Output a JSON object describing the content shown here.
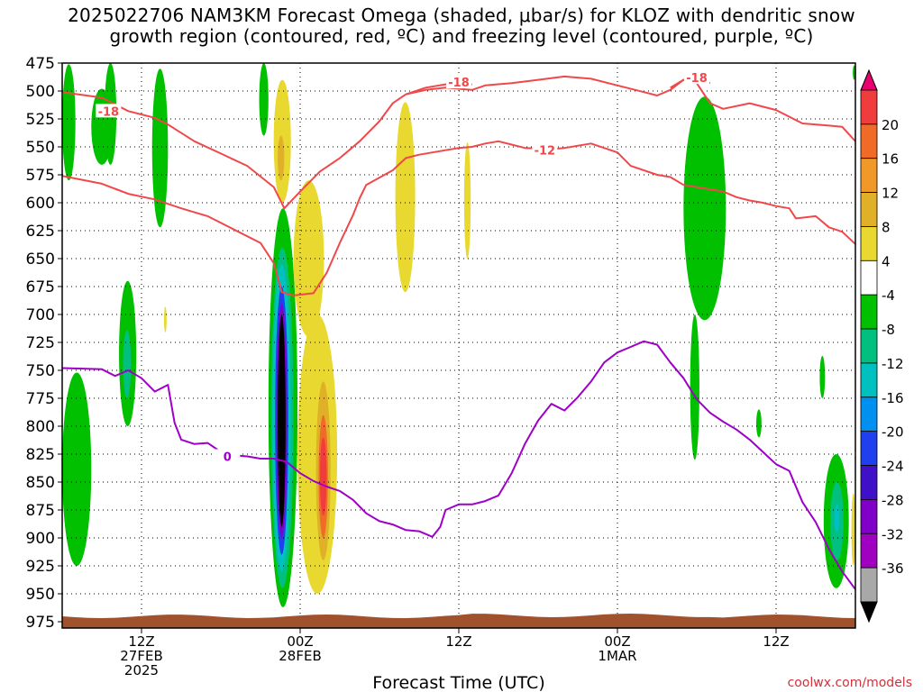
{
  "title_line1": "2025022706 NAM3KM Forecast Omega (shaded, μbar/s) for KLOZ with dendritic snow",
  "title_line2": "growth region (contoured, red, ºC) and freezing level (contoured, purple, ºC)",
  "credit": "coolwx.com/models",
  "colors": {
    "dgz_contour": "#f0484a",
    "freezing_contour": "#9e00c8",
    "terrain": "#a0522d",
    "grid": "#000000"
  },
  "chart_data": {
    "type": "heatmap",
    "title": "2025022706 NAM3KM Forecast Omega (shaded, μbar/s) for KLOZ with dendritic snow growth region (contoured, red, ºC) and freezing level (contoured, purple, ºC)",
    "xlabel": "Forecast Time (UTC)",
    "ylabel": "",
    "x_range_hours": [
      0,
      60
    ],
    "x_ticks": [
      {
        "h": 6,
        "l1": "12Z",
        "l2": "27FEB",
        "l3": "2025"
      },
      {
        "h": 18,
        "l1": "00Z",
        "l2": "28FEB",
        "l3": ""
      },
      {
        "h": 30,
        "l1": "12Z",
        "l2": "",
        "l3": ""
      },
      {
        "h": 42,
        "l1": "00Z",
        "l2": "1MAR",
        "l3": ""
      },
      {
        "h": 54,
        "l1": "12Z",
        "l2": "",
        "l3": ""
      }
    ],
    "y_range_hPa": [
      975,
      475
    ],
    "y_ticks": [
      475,
      500,
      525,
      550,
      575,
      600,
      625,
      650,
      675,
      700,
      725,
      750,
      775,
      800,
      825,
      850,
      875,
      900,
      925,
      950,
      975
    ],
    "grid": true,
    "colorbar": {
      "ticks": [
        20,
        16,
        12,
        8,
        4,
        -4,
        -8,
        -12,
        -16,
        -20,
        -24,
        -28,
        -32,
        -36
      ],
      "colors": [
        "#e8006e",
        "#f03c3c",
        "#f06a28",
        "#f09828",
        "#e0b028",
        "#e8d830",
        "#ffffff",
        "#00c000",
        "#00c080",
        "#00c0c0",
        "#0090f0",
        "#2040f0",
        "#4010c8",
        "#8000c8",
        "#a000c0",
        "#a8a8a8",
        "#000000"
      ]
    },
    "contours": [
      {
        "group": "dgz",
        "label": "-18",
        "label_at": [
          3.5,
          518
        ],
        "points": [
          [
            0,
            501
          ],
          [
            3,
            506
          ],
          [
            5,
            518
          ],
          [
            7,
            524
          ],
          [
            8,
            530
          ],
          [
            10,
            545
          ],
          [
            12,
            556
          ],
          [
            14,
            567
          ],
          [
            16,
            586
          ],
          [
            16.8,
            605
          ],
          [
            18,
            590
          ],
          [
            19.5,
            572
          ],
          [
            21,
            560
          ],
          [
            22.5,
            545
          ],
          [
            24,
            527
          ],
          [
            25,
            511
          ],
          [
            26,
            503
          ],
          [
            27.5,
            499
          ],
          [
            29,
            497
          ],
          [
            31,
            499
          ],
          [
            32,
            495
          ],
          [
            34,
            493
          ],
          [
            36,
            490
          ],
          [
            38,
            487
          ],
          [
            40,
            489
          ],
          [
            42,
            495
          ],
          [
            44,
            501
          ],
          [
            45,
            504
          ],
          [
            46,
            499
          ],
          [
            47,
            490
          ],
          [
            48,
            493
          ],
          [
            49,
            511
          ],
          [
            50,
            516
          ],
          [
            52,
            511
          ],
          [
            54,
            517
          ],
          [
            56,
            529
          ],
          [
            58,
            531
          ],
          [
            59,
            532
          ],
          [
            60,
            545
          ]
        ]
      },
      {
        "group": "dgz",
        "label": "-18",
        "label_at": [
          30,
          492
        ],
        "points": [
          [
            26,
            503
          ],
          [
            27.5,
            497
          ],
          [
            29,
            494
          ],
          [
            31,
            494
          ]
        ]
      },
      {
        "group": "dgz",
        "label": "-18",
        "label_at": [
          48,
          488
        ],
        "points": [
          [
            46,
            497
          ],
          [
            47,
            490
          ],
          [
            48,
            488
          ],
          [
            49,
            493
          ]
        ]
      },
      {
        "group": "dgz",
        "label": "-12",
        "label_at": [
          36.5,
          553
        ],
        "points": [
          [
            0,
            576
          ],
          [
            3,
            583
          ],
          [
            5,
            592
          ],
          [
            7,
            597
          ],
          [
            9,
            605
          ],
          [
            11,
            612
          ],
          [
            13,
            624
          ],
          [
            15,
            636
          ],
          [
            16,
            654
          ],
          [
            16.6,
            680
          ],
          [
            17.5,
            683
          ],
          [
            19,
            681
          ],
          [
            20,
            663
          ],
          [
            21,
            636
          ],
          [
            22,
            611
          ],
          [
            22.5,
            596
          ],
          [
            23,
            584
          ],
          [
            25,
            571
          ],
          [
            26,
            560
          ],
          [
            27,
            557
          ],
          [
            29,
            553
          ],
          [
            30,
            551
          ],
          [
            31,
            550
          ],
          [
            32,
            547
          ],
          [
            33,
            545
          ],
          [
            34,
            548
          ],
          [
            35,
            551
          ],
          [
            37,
            552
          ],
          [
            38,
            551
          ],
          [
            40,
            547
          ],
          [
            42,
            555
          ],
          [
            43,
            567
          ],
          [
            45,
            575
          ],
          [
            46,
            577
          ],
          [
            47,
            584
          ],
          [
            48,
            586
          ],
          [
            50,
            590
          ],
          [
            51,
            595
          ],
          [
            52,
            598
          ],
          [
            53,
            600
          ],
          [
            54,
            603
          ],
          [
            55,
            605
          ],
          [
            55.5,
            614
          ],
          [
            57,
            612
          ],
          [
            58,
            622
          ],
          [
            59,
            626
          ],
          [
            60,
            637
          ]
        ]
      },
      {
        "group": "freezing",
        "label": "0",
        "label_at": [
          12.5,
          827
        ],
        "points": [
          [
            0,
            748
          ],
          [
            3,
            749
          ],
          [
            4,
            755
          ],
          [
            5,
            750
          ],
          [
            6,
            757
          ],
          [
            7,
            769
          ],
          [
            8,
            763
          ],
          [
            8.5,
            797
          ],
          [
            9,
            812
          ],
          [
            10,
            816
          ],
          [
            11,
            815
          ],
          [
            12,
            823
          ],
          [
            13,
            826
          ],
          [
            14,
            827
          ],
          [
            15,
            829
          ],
          [
            16,
            829
          ],
          [
            17,
            832
          ],
          [
            18,
            842
          ],
          [
            19,
            849
          ],
          [
            20,
            854
          ],
          [
            21,
            858
          ],
          [
            22,
            866
          ],
          [
            23,
            878
          ],
          [
            24,
            885
          ],
          [
            25,
            888
          ],
          [
            26,
            893
          ],
          [
            27,
            894
          ],
          [
            28,
            899
          ],
          [
            28.6,
            890
          ],
          [
            29,
            875
          ],
          [
            30,
            870
          ],
          [
            31,
            870
          ],
          [
            32,
            867
          ],
          [
            33,
            862
          ],
          [
            34,
            842
          ],
          [
            35,
            816
          ],
          [
            36,
            795
          ],
          [
            37,
            780
          ],
          [
            38,
            786
          ],
          [
            39,
            774
          ],
          [
            40,
            760
          ],
          [
            41,
            743
          ],
          [
            42,
            734
          ],
          [
            43,
            729
          ],
          [
            44,
            724
          ],
          [
            45,
            727
          ],
          [
            46,
            743
          ],
          [
            47,
            757
          ],
          [
            48,
            776
          ],
          [
            49,
            788
          ],
          [
            50,
            796
          ],
          [
            51,
            803
          ],
          [
            52,
            812
          ],
          [
            53,
            823
          ],
          [
            54,
            834
          ],
          [
            55,
            840
          ],
          [
            56,
            868
          ],
          [
            57,
            886
          ],
          [
            58,
            910
          ],
          [
            59,
            930
          ],
          [
            60,
            946
          ]
        ]
      }
    ],
    "omega_regions": [
      {
        "value": -8,
        "t0": 0.0,
        "t1": 1.0,
        "p0": 476,
        "p1": 580
      },
      {
        "value": -8,
        "t0": 0.0,
        "t1": 2.2,
        "p0": 752,
        "p1": 925
      },
      {
        "value": -8,
        "t0": 2.2,
        "t1": 3.8,
        "p0": 498,
        "p1": 566
      },
      {
        "value": -8,
        "t0": 3.2,
        "t1": 4.1,
        "p0": 475,
        "p1": 566
      },
      {
        "value": -8,
        "t0": 4.3,
        "t1": 5.6,
        "p0": 670,
        "p1": 800
      },
      {
        "value": -12,
        "t0": 4.6,
        "t1": 5.2,
        "p0": 714,
        "p1": 775
      },
      {
        "value": -8,
        "t0": 6.8,
        "t1": 8.0,
        "p0": 480,
        "p1": 622
      },
      {
        "value": 4,
        "t0": 7.7,
        "t1": 7.9,
        "p0": 693,
        "p1": 716
      },
      {
        "value": -8,
        "t0": 14.9,
        "t1": 15.6,
        "p0": 475,
        "p1": 540
      },
      {
        "value": 4,
        "t0": 16.0,
        "t1": 17.3,
        "p0": 490,
        "p1": 600
      },
      {
        "value": 8,
        "t0": 16.3,
        "t1": 16.8,
        "p0": 540,
        "p1": 580
      },
      {
        "value": -8,
        "t0": 15.6,
        "t1": 17.8,
        "p0": 605,
        "p1": 962
      },
      {
        "value": -12,
        "t0": 15.8,
        "t1": 17.5,
        "p0": 640,
        "p1": 945
      },
      {
        "value": -16,
        "t0": 15.9,
        "t1": 17.3,
        "p0": 655,
        "p1": 930
      },
      {
        "value": -24,
        "t0": 16.1,
        "t1": 17.1,
        "p0": 675,
        "p1": 915
      },
      {
        "value": -32,
        "t0": 16.2,
        "t1": 17.0,
        "p0": 690,
        "p1": 900
      },
      {
        "value": -36,
        "t0": 16.3,
        "t1": 16.9,
        "p0": 700,
        "p1": 890
      },
      {
        "value": 4,
        "t0": 17.5,
        "t1": 19.8,
        "p0": 580,
        "p1": 720
      },
      {
        "value": 4,
        "t0": 17.8,
        "t1": 20.8,
        "p0": 700,
        "p1": 950
      },
      {
        "value": 8,
        "t0": 19.2,
        "t1": 20.3,
        "p0": 760,
        "p1": 920
      },
      {
        "value": 12,
        "t0": 19.4,
        "t1": 20.1,
        "p0": 790,
        "p1": 900
      },
      {
        "value": 16,
        "t0": 19.5,
        "t1": 20.0,
        "p0": 810,
        "p1": 880
      },
      {
        "value": 4,
        "t0": 25.2,
        "t1": 26.7,
        "p0": 510,
        "p1": 680
      },
      {
        "value": 4,
        "t0": 30.4,
        "t1": 30.9,
        "p0": 546,
        "p1": 650
      },
      {
        "value": -8,
        "t0": 47.0,
        "t1": 50.2,
        "p0": 505,
        "p1": 705
      },
      {
        "value": -8,
        "t0": 47.5,
        "t1": 48.2,
        "p0": 700,
        "p1": 830
      },
      {
        "value": -8,
        "t0": 52.5,
        "t1": 52.9,
        "p0": 785,
        "p1": 810
      },
      {
        "value": -8,
        "t0": 57.3,
        "t1": 57.7,
        "p0": 737,
        "p1": 775
      },
      {
        "value": -8,
        "t0": 57.6,
        "t1": 59.5,
        "p0": 825,
        "p1": 945
      },
      {
        "value": -12,
        "t0": 58.1,
        "t1": 59.1,
        "p0": 850,
        "p1": 920
      },
      {
        "value": -16,
        "t0": 58.4,
        "t1": 58.8,
        "p0": 870,
        "p1": 895
      },
      {
        "value": -8,
        "t0": 59.8,
        "t1": 60.0,
        "p0": 477,
        "p1": 490
      },
      {
        "value": 4,
        "t0": 59.7,
        "t1": 60.0,
        "p0": 860,
        "p1": 925
      }
    ]
  }
}
